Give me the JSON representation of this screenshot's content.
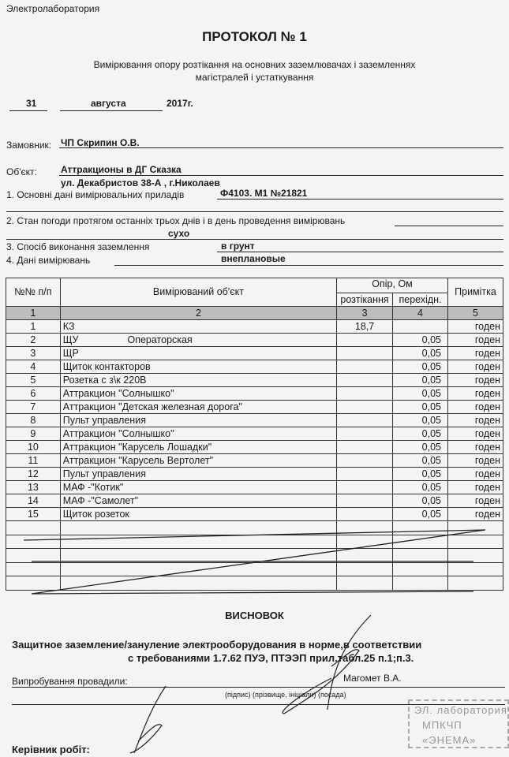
{
  "header": {
    "org": "Электролаборатория",
    "title": "ПРОТОКОЛ № 1",
    "subtitle_1": "Вимірювання опору розтікання на основних заземлювачах і заземленнях",
    "subtitle_2": "магістралей і устаткування"
  },
  "date": {
    "day": "31",
    "month": "августа",
    "year": "2017г."
  },
  "fields": {
    "customer_label": "Замовник:",
    "customer": "ЧП  Скрипин О.В.",
    "object_label": "Об'єкт:",
    "object_1": "Аттракционы в ДГ Сказка",
    "object_2": "ул. Декабристов 38-А , г.Николаев",
    "instruments_label": "1. Основні дані вимірювальних приладів",
    "instruments": "Ф4103. М1 №21821",
    "weather_label": "2. Стан погоди протягом останніх трьох днів і в день проведення вимірювань",
    "weather": "сухо",
    "method_label": "3. Спосіб виконання заземлення",
    "method": "в грунт",
    "data_label": "4. Дані вимірювань",
    "data": "внеплановые"
  },
  "table": {
    "headers": {
      "num": "№№ п/п",
      "object": "Вимірюваний об'єкт",
      "resistance": "Опір, Ом",
      "spreading": "розтікання",
      "transition": "перехідн.",
      "note": "Примітка"
    },
    "col_numbers": [
      "1",
      "2",
      "3",
      "4",
      "5"
    ],
    "rows": [
      {
        "n": "1",
        "obj": "КЗ",
        "extra": "",
        "r": "18,7",
        "t": "",
        "note": "годен"
      },
      {
        "n": "2",
        "obj": "ЩУ",
        "extra": "Операторская",
        "r": "",
        "t": "0,05",
        "note": "годен"
      },
      {
        "n": "3",
        "obj": "ЩР",
        "extra": "",
        "r": "",
        "t": "0,05",
        "note": "годен"
      },
      {
        "n": "4",
        "obj": "Щиток контакторов",
        "extra": "",
        "r": "",
        "t": "0,05",
        "note": "годен"
      },
      {
        "n": "5",
        "obj": "Розетка  с  з\\к 220В",
        "extra": "",
        "r": "",
        "t": "0,05",
        "note": "годен"
      },
      {
        "n": "6",
        "obj": "Аттракцион \"Солнышко\"",
        "extra": "",
        "r": "",
        "t": "0,05",
        "note": "годен"
      },
      {
        "n": "7",
        "obj": "Аттракцион \"Детская  железная дорога\"",
        "extra": "",
        "r": "",
        "t": "0,05",
        "note": "годен"
      },
      {
        "n": "8",
        "obj": "Пульт управления",
        "extra": "",
        "r": "",
        "t": "0,05",
        "note": "годен"
      },
      {
        "n": "9",
        "obj": "Аттракцион \"Солнышко\"",
        "extra": "",
        "r": "",
        "t": "0,05",
        "note": "годен"
      },
      {
        "n": "10",
        "obj": "Аттракцион \"Карусель Лошадки\"",
        "extra": "",
        "r": "",
        "t": "0,05",
        "note": "годен"
      },
      {
        "n": "11",
        "obj": "Аттракцион \"Карусель Вертолет\"",
        "extra": "",
        "r": "",
        "t": "0,05",
        "note": "годен"
      },
      {
        "n": "12",
        "obj": "Пульт управления",
        "extra": "",
        "r": "",
        "t": "0,05",
        "note": "годен"
      },
      {
        "n": "13",
        "obj": "МАФ -\"Котик\"",
        "extra": "",
        "r": "",
        "t": "0,05",
        "note": "годен"
      },
      {
        "n": "14",
        "obj": "МАФ -\"Самолет\"",
        "extra": "",
        "r": "",
        "t": "0,05",
        "note": "годен"
      },
      {
        "n": "15",
        "obj": "Щиток розеток",
        "extra": "",
        "r": "",
        "t": "0,05",
        "note": "годен"
      }
    ]
  },
  "conclusion": {
    "title": "ВИСНОВОК",
    "line_1": "Защитное заземление/зануление электрооборудования в норме,в соответствии",
    "line_2": "с требованиями 1.7.62 ПУЭ,  ПТЭЭП прил.табл.25 п.1;п.3."
  },
  "signatures": {
    "tested_label": "Випробування провадили:",
    "tester": "Магомет В.А.",
    "caption": "(підпис) (прізвище, ініціали) (посада)",
    "head_label": "Керівник робіт:"
  },
  "stamp": {
    "text": [
      "ЭЛ. лаборатория",
      "МПКЧП",
      "«ЭНЕМА»"
    ]
  }
}
